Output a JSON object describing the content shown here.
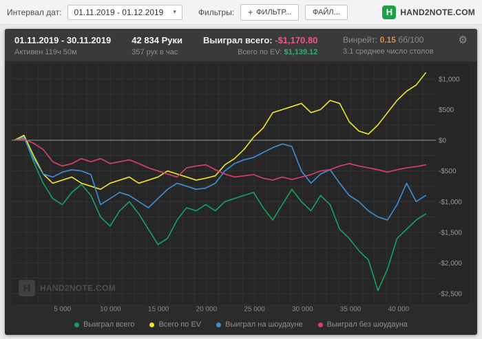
{
  "icons": {
    "caret": "▾",
    "plus": "+",
    "gear": "⚙",
    "logo_letter": "H"
  },
  "toolbar": {
    "date_interval_label": "Интервал дат:",
    "date_interval_value": "01.11.2019 - 01.12.2019",
    "filters_label": "Фильтры:",
    "add_filter_button": "ФИЛЬТР...",
    "file_button": "ФАЙЛ...",
    "brand": "HAND2NOTE.COM",
    "brand_color": "#1ea04b"
  },
  "header": {
    "date_range": "01.11.2019 - 30.11.2019",
    "active_time": "Активен 119ч 50м",
    "hands": "42 834 Руки",
    "hands_per_hour": "357 рук в час",
    "won_total_label": "Выиграл всего:",
    "won_total_value": "-$1,170.80",
    "won_color": "#f1568a",
    "ev_total_label": "Всего по EV:",
    "ev_total_value": "$1,139.12",
    "ev_color": "#33b06a",
    "winrate_label": "Винрейт:",
    "winrate_value": "0.15",
    "winrate_unit": "бб/100",
    "winrate_color": "#de8f3a",
    "avg_tables": "3.1 среднее число столов"
  },
  "watermark": "HAND2NOTE.COM",
  "chart_data": {
    "type": "line",
    "title": "",
    "xlabel": "",
    "ylabel": "",
    "plot_bg": "#262626",
    "grid_color": "#333333",
    "zero_line_color": "#8d8d8d",
    "xlim": [
      0,
      43600
    ],
    "ylim": [
      -2600,
      1150
    ],
    "x_max": 42834,
    "x_grid_step": 1250,
    "y_grid_step": 250,
    "x_ticks": [
      "5 000",
      "10 000",
      "15 000",
      "20 000",
      "25 000",
      "30 000",
      "35 000",
      "40 000"
    ],
    "x_tick_values": [
      5000,
      10000,
      15000,
      20000,
      25000,
      30000,
      35000,
      40000
    ],
    "y_ticks": [
      "$1,000",
      "$500",
      "$0",
      "-$500",
      "-$1,000",
      "-$1,500",
      "-$2,000",
      "-$2,500"
    ],
    "y_tick_values": [
      1000,
      500,
      0,
      -500,
      -1000,
      -1500,
      -2000,
      -2500
    ],
    "legend_position": "bottom",
    "series": [
      {
        "name": "Выиграл всего",
        "color": "#17a261",
        "values": [
          0,
          60,
          -350,
          -700,
          -950,
          -1050,
          -850,
          -720,
          -900,
          -1250,
          -1400,
          -1150,
          -1000,
          -1200,
          -1450,
          -1700,
          -1600,
          -1300,
          -1100,
          -1150,
          -1050,
          -1150,
          -1000,
          -950,
          -900,
          -850,
          -1100,
          -1300,
          -1050,
          -800,
          -1000,
          -1150,
          -900,
          -1050,
          -1450,
          -1600,
          -1800,
          -1950,
          -2450,
          -2100,
          -1600,
          -1450,
          -1300,
          -1200
        ]
      },
      {
        "name": "Всего по EV",
        "color": "#efe52c",
        "values": [
          0,
          80,
          -250,
          -550,
          -700,
          -650,
          -600,
          -700,
          -750,
          -800,
          -700,
          -650,
          -600,
          -700,
          -650,
          -600,
          -500,
          -550,
          -600,
          -650,
          -620,
          -580,
          -400,
          -300,
          -150,
          50,
          200,
          450,
          500,
          550,
          600,
          450,
          500,
          650,
          600,
          300,
          150,
          100,
          250,
          450,
          650,
          800,
          900,
          1100
        ]
      },
      {
        "name": "Выиграл на шоудауне",
        "color": "#3f8fd6",
        "values": [
          0,
          40,
          -300,
          -550,
          -600,
          -520,
          -480,
          -500,
          -560,
          -1050,
          -950,
          -850,
          -900,
          -1000,
          -1100,
          -950,
          -800,
          -700,
          -750,
          -800,
          -780,
          -700,
          -500,
          -380,
          -320,
          -280,
          -200,
          -120,
          -60,
          -100,
          -500,
          -700,
          -550,
          -480,
          -700,
          -900,
          -1000,
          -1150,
          -1250,
          -1300,
          -1050,
          -700,
          -1000,
          -900
        ]
      },
      {
        "name": "Выиграл без шоудауна",
        "color": "#d8406e",
        "values": [
          0,
          20,
          -50,
          -150,
          -350,
          -420,
          -380,
          -300,
          -350,
          -300,
          -380,
          -350,
          -320,
          -380,
          -450,
          -500,
          -550,
          -600,
          -450,
          -420,
          -400,
          -480,
          -550,
          -600,
          -580,
          -560,
          -620,
          -650,
          -600,
          -640,
          -600,
          -560,
          -500,
          -480,
          -420,
          -380,
          -420,
          -450,
          -480,
          -520,
          -480,
          -450,
          -430,
          -400
        ]
      }
    ]
  }
}
